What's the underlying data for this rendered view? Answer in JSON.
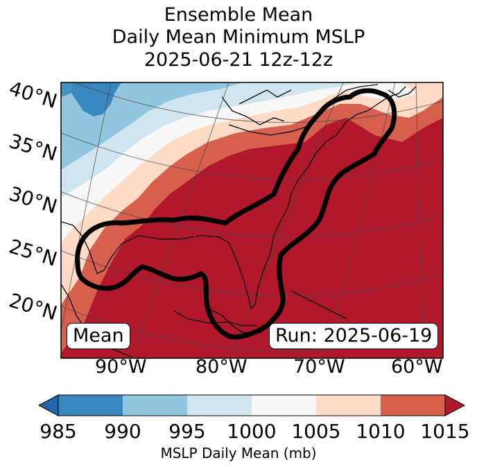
{
  "title": {
    "line1": "Ensemble Mean",
    "line2": "Daily Mean Minimum MSLP",
    "line3": "2025-06-21 12z-12z"
  },
  "lat_labels": [
    "40°N",
    "35°N",
    "30°N",
    "25°N",
    "20°N"
  ],
  "lon_labels": [
    "90°W",
    "80°W",
    "70°W",
    "60°W"
  ],
  "mean_box": "Mean",
  "run_box": "Run: 2025-06-19",
  "colorbar": {
    "ticks": [
      "985",
      "990",
      "995",
      "1000",
      "1005",
      "1010",
      "1015"
    ],
    "label": "MSLP Daily Mean (mb)",
    "colors": [
      "#3a87c0",
      "#92c5de",
      "#d1e5f0",
      "#f7f7f7",
      "#fddbc7",
      "#d6604d",
      "#b2182b"
    ],
    "under_color": "#2166ac",
    "over_color": "#b2182b"
  }
}
